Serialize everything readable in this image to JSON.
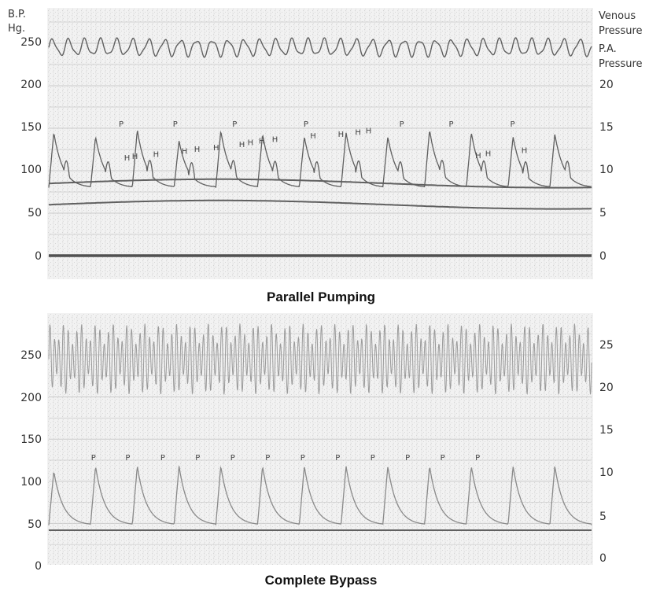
{
  "chart_data": [
    {
      "type": "line",
      "title": "Parallel Pumping",
      "ylabel": "B.P. Hg.",
      "y2label": "",
      "left_ticks": [
        "250",
        "200",
        "150",
        "100",
        "50",
        "0"
      ],
      "right_ticks": [
        "20",
        "15",
        "10",
        "5",
        "0"
      ],
      "ylim": [
        0,
        275
      ],
      "y2lim": [
        0,
        27.5
      ],
      "grid": true,
      "legend": "none",
      "series": [
        {
          "name": "Venous Pressure",
          "axis": "right",
          "approx_level": 24.5,
          "pattern": "high-frequency oscillation"
        },
        {
          "name": "P.A. Pressure",
          "axis": "right",
          "approx_level": 8.5,
          "pattern": "slow wave"
        },
        {
          "name": "",
          "axis": "left",
          "approx_level": 60,
          "pattern": "slow wave"
        },
        {
          "name": "",
          "axis": "left",
          "approx_level": 0,
          "pattern": "flat baseline"
        },
        {
          "name": "",
          "axis": "left",
          "pattern": "arterial pressure pulses",
          "approx_peaks": [
            145,
            140,
            148,
            135,
            147,
            143,
            140,
            145,
            140,
            148,
            145,
            140,
            143
          ]
        }
      ],
      "annotations": [
        {
          "label": "P",
          "x": 0.18
        },
        {
          "label": "H",
          "x": 0.188
        },
        {
          "label": "H",
          "x": 0.2
        },
        {
          "label": "H",
          "x": 0.232
        },
        {
          "label": "P",
          "x": 0.262
        },
        {
          "label": "H",
          "x": 0.275
        },
        {
          "label": "H",
          "x": 0.294
        },
        {
          "label": "H",
          "x": 0.323
        },
        {
          "label": "P",
          "x": 0.352
        },
        {
          "label": "H",
          "x": 0.362
        },
        {
          "label": "H",
          "x": 0.375
        },
        {
          "label": "H",
          "x": 0.392
        },
        {
          "label": "H",
          "x": 0.412
        },
        {
          "label": "P",
          "x": 0.46
        },
        {
          "label": "H",
          "x": 0.47
        },
        {
          "label": "H",
          "x": 0.512
        },
        {
          "label": "H",
          "x": 0.538
        },
        {
          "label": "H",
          "x": 0.554
        },
        {
          "label": "P",
          "x": 0.605
        },
        {
          "label": "P",
          "x": 0.68
        },
        {
          "label": "H",
          "x": 0.72
        },
        {
          "label": "H",
          "x": 0.735
        },
        {
          "label": "P",
          "x": 0.773
        },
        {
          "label": "H",
          "x": 0.79
        }
      ]
    },
    {
      "type": "line",
      "title": "Complete Bypass",
      "ylabel": "",
      "y2label": "",
      "left_ticks": [
        "250",
        "200",
        "150",
        "100",
        "50",
        "0"
      ],
      "right_ticks": [
        "25",
        "20",
        "15",
        "10",
        "5",
        "0"
      ],
      "ylim": [
        0,
        275
      ],
      "y2lim": [
        0,
        27.5
      ],
      "grid": true,
      "legend": "none",
      "series": [
        {
          "name": "",
          "axis": "right",
          "approx_level": 24.5,
          "pattern": "dense high-frequency oscillation"
        },
        {
          "name": "",
          "axis": "left",
          "pattern": "arterial pressure pulses",
          "approx_peaks": [
            112,
            118,
            118,
            118,
            118,
            118,
            118,
            118,
            118,
            118,
            118,
            118,
            118
          ]
        },
        {
          "name": "",
          "axis": "left",
          "approx_level": 42,
          "pattern": "flat baseline"
        }
      ],
      "annotations": [
        {
          "label": "P",
          "x": 0.138
        },
        {
          "label": "P",
          "x": 0.19
        },
        {
          "label": "P",
          "x": 0.243
        },
        {
          "label": "P",
          "x": 0.296
        },
        {
          "label": "P",
          "x": 0.349
        },
        {
          "label": "P",
          "x": 0.402
        },
        {
          "label": "P",
          "x": 0.455
        },
        {
          "label": "P",
          "x": 0.508
        },
        {
          "label": "P",
          "x": 0.561
        },
        {
          "label": "P",
          "x": 0.614
        },
        {
          "label": "P",
          "x": 0.667
        },
        {
          "label": "P",
          "x": 0.72
        }
      ]
    }
  ],
  "header": {
    "left_label_1": "B.P.",
    "left_label_2": "Hg.",
    "right_label_1": "Venous",
    "right_label_2": "Pressure",
    "right_label_3": "P.A.",
    "right_label_4": "Pressure"
  },
  "colors": {
    "trace": "#606060",
    "trace_light": "#8a8a8a",
    "grid": "#c9c9c9",
    "paper": "#e9e9e9",
    "baseline": "#505050"
  }
}
